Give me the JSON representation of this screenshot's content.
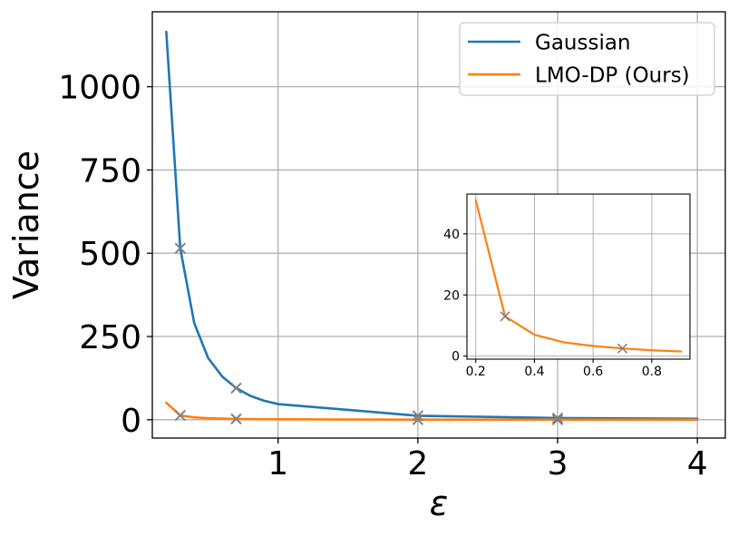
{
  "chart_data": [
    {
      "type": "line",
      "xlabel": "ε",
      "ylabel": "Variance",
      "xlim": [
        0.1,
        4.2
      ],
      "ylim": [
        -55,
        1225
      ],
      "xticks": [
        1,
        2,
        3,
        4
      ],
      "yticks": [
        0,
        250,
        500,
        750,
        1000
      ],
      "xtick_labels": [
        "1",
        "2",
        "3",
        "4"
      ],
      "ytick_labels": [
        "0",
        "250",
        "500",
        "750",
        "1000"
      ],
      "grid": true,
      "legend_position": "top-right",
      "series": [
        {
          "name": "Gaussian",
          "color": "#1f77b4",
          "x": [
            0.2,
            0.3,
            0.4,
            0.5,
            0.6,
            0.7,
            0.8,
            0.9,
            1.0,
            2.0,
            3.0,
            4.0
          ],
          "y": [
            1165,
            515,
            290,
            185,
            130,
            95,
            72,
            57,
            47,
            12,
            5,
            3
          ]
        },
        {
          "name": "LMO-DP (Ours)",
          "color": "#ff7f0e",
          "x": [
            0.2,
            0.3,
            0.4,
            0.5,
            0.6,
            0.7,
            0.8,
            0.9,
            1.0,
            2.0,
            3.0,
            4.0
          ],
          "y": [
            51,
            13,
            7,
            4.5,
            3.3,
            2.5,
            1.9,
            1.5,
            1.2,
            0.3,
            0.12,
            0.07
          ]
        }
      ],
      "markers": {
        "color": "#808080",
        "symbol": "x",
        "points": [
          {
            "x": 0.3,
            "y": 515
          },
          {
            "x": 0.3,
            "y": 13
          },
          {
            "x": 0.7,
            "y": 95
          },
          {
            "x": 0.7,
            "y": 2.5
          },
          {
            "x": 2.0,
            "y": 12
          },
          {
            "x": 2.0,
            "y": 0.3
          },
          {
            "x": 3.0,
            "y": 5
          },
          {
            "x": 3.0,
            "y": 0.12
          }
        ]
      }
    },
    {
      "type": "line",
      "title": "",
      "xlim": [
        0.17,
        0.93
      ],
      "ylim": [
        -1,
        53
      ],
      "xticks": [
        0.2,
        0.4,
        0.6,
        0.8
      ],
      "yticks": [
        0,
        20,
        40
      ],
      "xtick_labels": [
        "0.2",
        "0.4",
        "0.6",
        "0.8"
      ],
      "ytick_labels": [
        "0",
        "20",
        "40"
      ],
      "grid": true,
      "series": [
        {
          "color": "#ff7f0e",
          "x": [
            0.2,
            0.3,
            0.4,
            0.5,
            0.6,
            0.7,
            0.8,
            0.9
          ],
          "y": [
            51,
            13,
            7,
            4.5,
            3.3,
            2.5,
            1.9,
            1.5
          ]
        }
      ],
      "markers": {
        "color": "#808080",
        "symbol": "x",
        "points": [
          {
            "x": 0.3,
            "y": 13
          },
          {
            "x": 0.7,
            "y": 2.5
          }
        ]
      }
    }
  ]
}
